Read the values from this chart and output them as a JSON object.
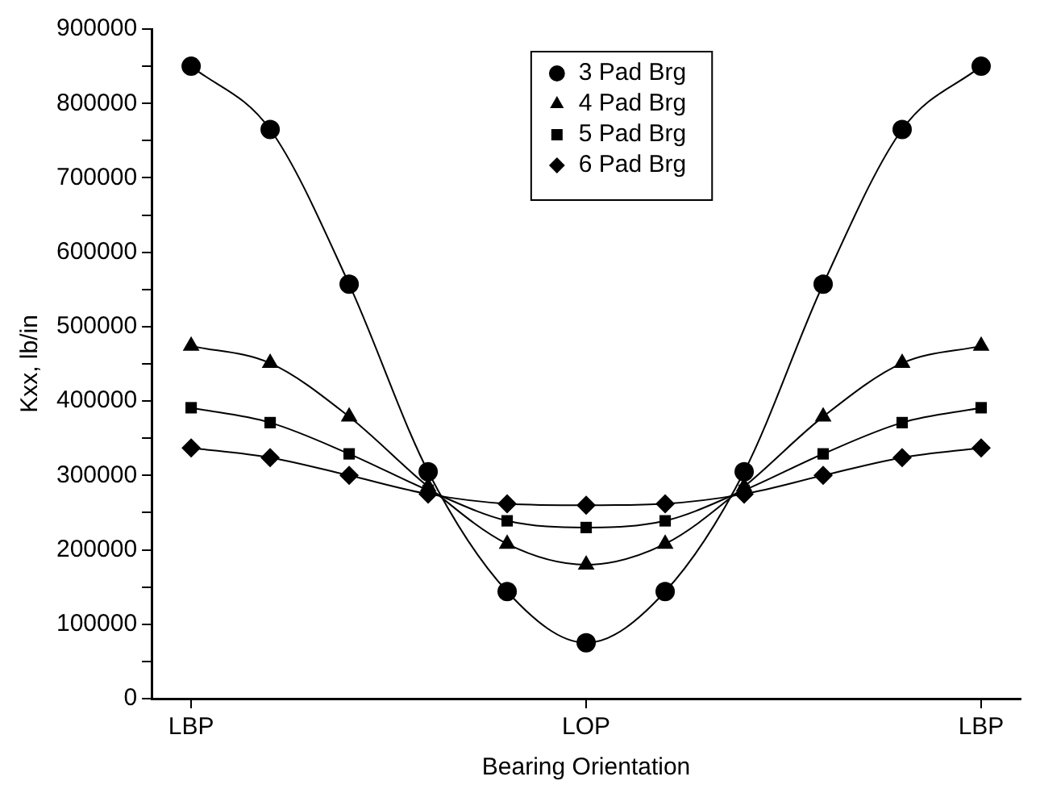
{
  "chart_data": {
    "type": "line",
    "xlabel": "Bearing Orientation",
    "ylabel": "Kxx, lb/in",
    "categories": [
      "LBP",
      null,
      null,
      null,
      null,
      "LOP",
      null,
      null,
      null,
      null,
      "LBP"
    ],
    "ylim": [
      0,
      900000
    ],
    "yticks": [
      0,
      {
        "value": 50000,
        "label": null
      },
      100000,
      {
        "value": 150000,
        "label": null
      },
      200000,
      {
        "value": 250000,
        "label": null
      },
      300000,
      {
        "value": 350000,
        "label": null
      },
      400000,
      {
        "value": 450000,
        "label": null
      },
      500000,
      {
        "value": 550000,
        "label": null
      },
      600000,
      {
        "value": 650000,
        "label": null
      },
      700000,
      {
        "value": 750000,
        "label": null
      },
      800000,
      {
        "value": 850000,
        "label": null
      },
      900000
    ],
    "grid": false,
    "legend": "top",
    "line_style": "solid",
    "series": [
      {
        "name": "3 Pad Brg",
        "color": "#000000",
        "marker": "circle",
        "values": [
          850000,
          765000,
          557000,
          305000,
          144000,
          75000,
          144000,
          305000,
          557000,
          765000,
          850000
        ]
      },
      {
        "name": "4 Pad Brg",
        "color": "#000000",
        "marker": "triangle",
        "values": [
          474000,
          451000,
          379000,
          285000,
          208000,
          180000,
          208000,
          285000,
          379000,
          451000,
          474000
        ]
      },
      {
        "name": "5 Pad Brg",
        "color": "#000000",
        "marker": "square",
        "values": [
          391000,
          371000,
          329000,
          280000,
          239000,
          230000,
          239000,
          280000,
          329000,
          371000,
          391000
        ]
      },
      {
        "name": "6 Pad Brg",
        "color": "#000000",
        "marker": "diamond",
        "values": [
          337000,
          324000,
          300000,
          275000,
          262000,
          260000,
          262000,
          275000,
          300000,
          324000,
          337000
        ]
      }
    ]
  }
}
